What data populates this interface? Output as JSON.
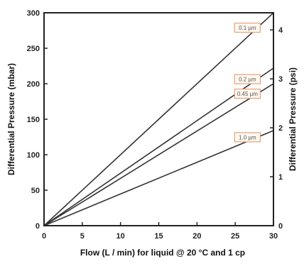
{
  "chart_data": {
    "type": "line",
    "title": "",
    "xlabel": "Flow (L / min) for liquid @ 20 °C and 1 cp",
    "ylabel": "Differential Pressure (mbar)",
    "y2label": "Differential Pressure (psi)",
    "xlim": [
      0,
      30
    ],
    "ylim": [
      0,
      300
    ],
    "y2lim": [
      0,
      4.35
    ],
    "xticks": [
      "0",
      "5",
      "10",
      "15",
      "20",
      "25",
      "30"
    ],
    "yticks": [
      "0",
      "50",
      "100",
      "150",
      "200",
      "250",
      "300"
    ],
    "y2ticks": [
      "0",
      "1",
      "2",
      "3",
      "4"
    ],
    "grid": false,
    "legend": "inline labels near line ends",
    "series": [
      {
        "name": "0.1 µm",
        "x": [
          0,
          30
        ],
        "y": [
          0,
          300
        ]
      },
      {
        "name": "0.2 µm",
        "x": [
          0,
          30
        ],
        "y": [
          0,
          222
        ]
      },
      {
        "name": "0.45 µm",
        "x": [
          0,
          30
        ],
        "y": [
          0,
          200
        ]
      },
      {
        "name": "1.0 µm",
        "x": [
          0,
          30
        ],
        "y": [
          0,
          134
        ]
      }
    ],
    "colors": {
      "line": "#333333",
      "label_box_border": "#e8a07a",
      "label_box_fill": "#fff8f0"
    }
  }
}
